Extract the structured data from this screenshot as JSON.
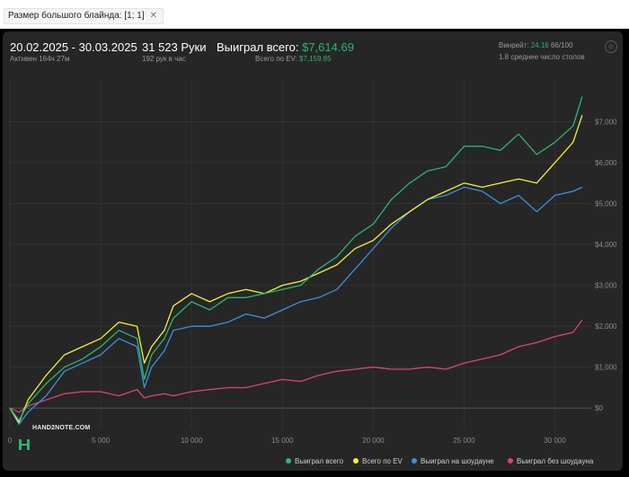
{
  "filter": {
    "chip_label": "Размер большого блайнда: [1; 1]",
    "close_glyph": "✕"
  },
  "header": {
    "date_range": "20.02.2025 - 30.03.2025",
    "active_time": "Активен 164ч 27м",
    "hands": "31 523 Руки",
    "hands_per_hour": "192 рук в час",
    "won_label": "Выиграл всего:",
    "won_value": "$7,614.69",
    "ev_label": "Всего по EV:",
    "ev_value": "$7,159.85",
    "winrate_label": "Винрейт:",
    "winrate_value": "24.16",
    "winrate_suffix": "66/100",
    "tables_avg": "1.8 среднее число столов"
  },
  "watermark": {
    "text": "HAND2NOTE.COM"
  },
  "colors": {
    "won": "#2bb673",
    "ev": "#f2f23a",
    "showdown": "#3d8fe0",
    "non_showdown": "#e0436e",
    "grid": "#333333",
    "axis_text": "#8a8a8a"
  },
  "chart_data": {
    "type": "line",
    "xlabel": "",
    "ylabel": "",
    "xlim": [
      0,
      32000
    ],
    "ylim": [
      -500,
      8000
    ],
    "x_ticks": [
      0,
      5000,
      10000,
      15000,
      20000,
      25000,
      30000
    ],
    "x_tick_labels": [
      "0",
      "5 000",
      "10 000",
      "15 000",
      "20 000",
      "25 000",
      "30 000"
    ],
    "y_ticks": [
      0,
      1000,
      2000,
      3000,
      4000,
      5000,
      6000,
      7000
    ],
    "y_tick_labels": [
      "$0",
      "$1,000",
      "$2,000",
      "$3,000",
      "$4,000",
      "$5,000",
      "$6,000",
      "$7,000"
    ],
    "grid": true,
    "legend_position": "bottom-right",
    "x": [
      0,
      500,
      1000,
      2000,
      3000,
      4000,
      5000,
      6000,
      7000,
      7400,
      7800,
      8500,
      9000,
      10000,
      11000,
      12000,
      13000,
      14000,
      15000,
      16000,
      17000,
      18000,
      19000,
      20000,
      21000,
      22000,
      23000,
      24000,
      25000,
      26000,
      27000,
      28000,
      29000,
      30000,
      31000,
      31500
    ],
    "series": [
      {
        "name": "Выиграл всего",
        "values": [
          0,
          -300,
          100,
          600,
          1000,
          1200,
          1500,
          1900,
          1700,
          700,
          1300,
          1700,
          2200,
          2600,
          2400,
          2700,
          2700,
          2800,
          2900,
          3000,
          3400,
          3700,
          4200,
          4500,
          5100,
          5500,
          5800,
          5900,
          6400,
          6400,
          6300,
          6700,
          6200,
          6500,
          6900,
          7614.69
        ]
      },
      {
        "name": "Всего по EV",
        "values": [
          0,
          -350,
          200,
          800,
          1300,
          1500,
          1700,
          2100,
          2000,
          1100,
          1500,
          1900,
          2500,
          2800,
          2600,
          2800,
          2900,
          2800,
          3000,
          3100,
          3300,
          3500,
          3900,
          4100,
          4500,
          4800,
          5100,
          5300,
          5500,
          5400,
          5500,
          5600,
          5500,
          6000,
          6500,
          7159.85
        ]
      },
      {
        "name": "Выиграл на шоудауне",
        "values": [
          0,
          -400,
          -100,
          300,
          900,
          1100,
          1300,
          1700,
          1500,
          500,
          1000,
          1400,
          1900,
          2000,
          2000,
          2100,
          2300,
          2200,
          2400,
          2600,
          2700,
          2900,
          3400,
          3900,
          4400,
          4800,
          5100,
          5200,
          5400,
          5300,
          5000,
          5200,
          4800,
          5200,
          5300,
          5400
        ]
      },
      {
        "name": "Выиграл без шоудауна",
        "values": [
          0,
          -100,
          50,
          200,
          350,
          400,
          400,
          300,
          450,
          250,
          300,
          350,
          300,
          400,
          450,
          500,
          500,
          600,
          700,
          650,
          800,
          900,
          950,
          1000,
          950,
          950,
          1000,
          950,
          1100,
          1200,
          1300,
          1500,
          1600,
          1750,
          1850,
          2150
        ]
      }
    ]
  }
}
